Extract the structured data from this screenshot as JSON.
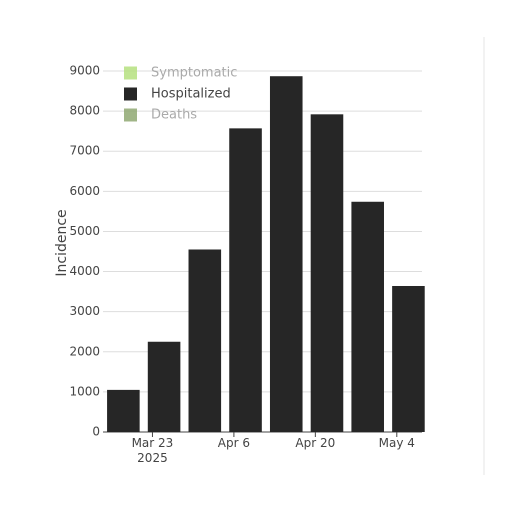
{
  "chart_data": {
    "type": "bar",
    "y_label": "Incidence",
    "x": [
      "2025-03-18",
      "2025-03-25",
      "2025-04-01",
      "2025-04-08",
      "2025-04-15",
      "2025-04-22",
      "2025-04-29",
      "2025-05-06"
    ],
    "series": [
      {
        "name": "Symptomatic",
        "color": "#b5e07f",
        "visible": false,
        "values": [
          null,
          null,
          null,
          null,
          null,
          null,
          null,
          null
        ]
      },
      {
        "name": "Hospitalized",
        "color": "#262626",
        "visible": true,
        "values": [
          1050,
          2250,
          4550,
          7570,
          8870,
          7920,
          5740,
          3640
        ]
      },
      {
        "name": "Deaths",
        "color": "#8fa872",
        "visible": false,
        "values": [
          null,
          null,
          null,
          null,
          null,
          null,
          null,
          null
        ]
      }
    ],
    "xlim": [
      "2025-03-14T12:00",
      "2025-05-08T08:00"
    ],
    "xticks": [
      {
        "value": "2025-03-23",
        "label": "Mar 23\n2025"
      },
      {
        "value": "2025-04-06",
        "label": "Apr 6"
      },
      {
        "value": "2025-04-20",
        "label": "Apr 20"
      },
      {
        "value": "2025-05-04",
        "label": "May 4"
      }
    ],
    "ylim": [
      0,
      9000
    ],
    "yticks": [
      0,
      1000,
      2000,
      3000,
      4000,
      5000,
      6000,
      7000,
      8000,
      9000
    ],
    "grid": true,
    "legend": "top-left"
  }
}
